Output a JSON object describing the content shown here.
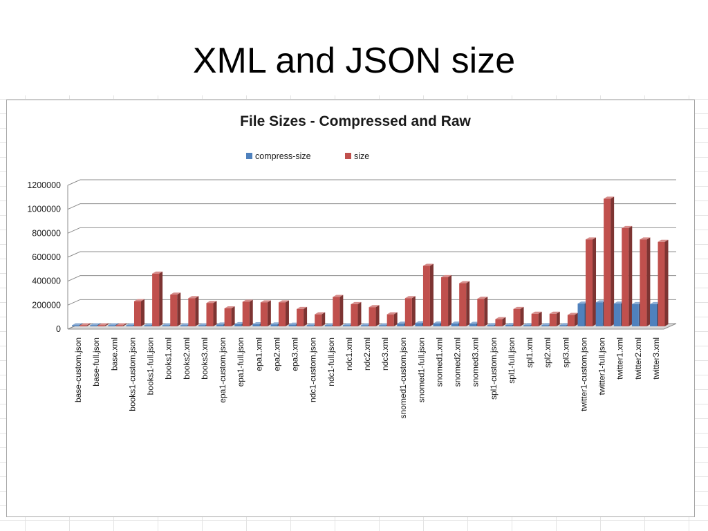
{
  "slide": {
    "title": "XML and JSON size"
  },
  "chart_data": {
    "type": "bar",
    "title": "File Sizes - Compressed and Raw",
    "xlabel": "",
    "ylabel": "",
    "ylim": [
      0,
      1200000
    ],
    "yticks": [
      0,
      200000,
      400000,
      600000,
      800000,
      1000000,
      1200000
    ],
    "ytick_labels": [
      "0",
      "200000",
      "400000",
      "600000",
      "800000",
      "1000000",
      "1200000"
    ],
    "grid": true,
    "legend_position": "top",
    "categories": [
      "base-custom.json",
      "base-full.json",
      "base.xml",
      "books1-custom.json",
      "books1-full.json",
      "books1.xml",
      "books2.xml",
      "books3.xml",
      "epa1-custom.json",
      "epa1-full.json",
      "epa1.xml",
      "epa2.xml",
      "epa3.xml",
      "ndc1-custom.json",
      "ndc1-full.json",
      "ndc1.xml",
      "ndc2.xml",
      "ndc3.xml",
      "snomed1-custom.json",
      "snomed1-full.json",
      "snomed1.xml",
      "snomed2.xml",
      "snomed3.xml",
      "spl1-custom.json",
      "spl1-full.json",
      "spl1.xml",
      "spl2.xml",
      "spl3.xml",
      "twitter1-custom.json",
      "twitter1-full.json",
      "twitter1.xml",
      "twitter2.xml",
      "twitter3.xml"
    ],
    "series": [
      {
        "name": "compress-size",
        "color": "#4f81bd",
        "values": [
          1000,
          1000,
          1000,
          3000,
          4000,
          5000,
          5000,
          5000,
          15000,
          18000,
          17000,
          16000,
          14000,
          7000,
          9000,
          9000,
          8000,
          7000,
          22000,
          26000,
          24000,
          23000,
          21000,
          10000,
          11000,
          10000,
          10000,
          10000,
          190000,
          200000,
          190000,
          185000,
          185000
        ]
      },
      {
        "name": "size",
        "color": "#c0504d",
        "values": [
          5000,
          5000,
          7000,
          210000,
          440000,
          265000,
          235000,
          195000,
          150000,
          205000,
          200000,
          200000,
          145000,
          100000,
          245000,
          185000,
          160000,
          100000,
          235000,
          505000,
          410000,
          360000,
          230000,
          60000,
          145000,
          105000,
          105000,
          95000,
          725000,
          1065000,
          820000,
          725000,
          705000
        ]
      }
    ]
  }
}
